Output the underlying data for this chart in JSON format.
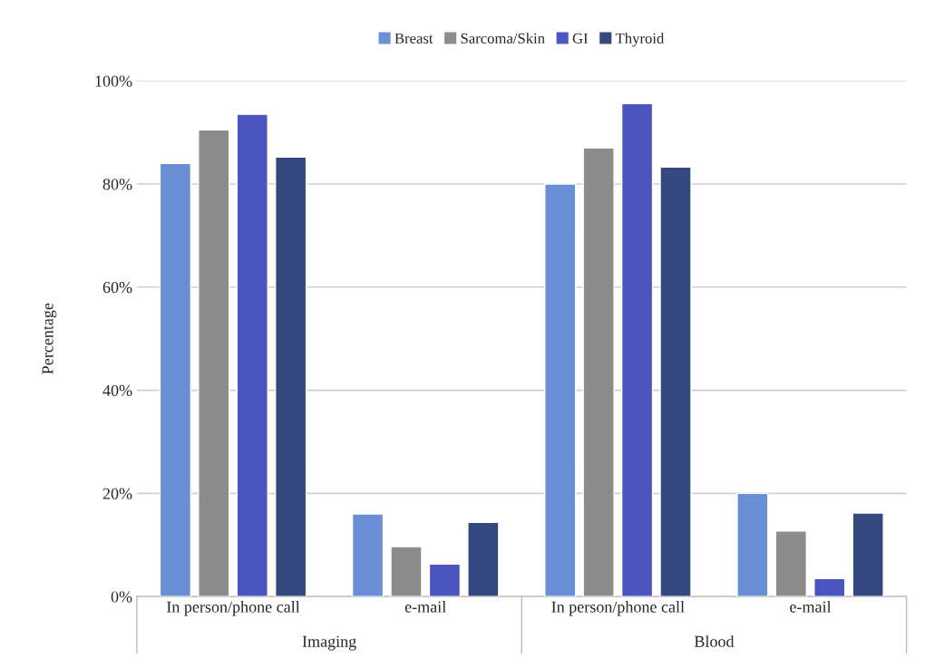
{
  "chart_data": {
    "type": "bar",
    "ylabel": "Percentage",
    "categories": [
      "In person/phone call",
      "e-mail",
      "In person/phone call",
      "e-mail"
    ],
    "annotations": [
      "Imaging",
      "Blood"
    ],
    "series": [
      {
        "name": "Breast",
        "color": "#6a8fd6",
        "values": [
          84,
          16,
          80,
          20
        ]
      },
      {
        "name": "Sarcoma/Skin",
        "color": "#8c8c8c",
        "values": [
          90.5,
          9.7,
          87,
          12.7
        ]
      },
      {
        "name": "GI",
        "color": "#4a55c0",
        "values": [
          93.5,
          6.3,
          95.6,
          3.5
        ]
      },
      {
        "name": "Thyroid",
        "color": "#34487f",
        "values": [
          85.2,
          14.4,
          83.3,
          16.2
        ]
      }
    ],
    "ylim": [
      0,
      100
    ],
    "yticks": [
      {
        "value": 0,
        "label": "0%"
      },
      {
        "value": 20,
        "label": "20%"
      },
      {
        "value": 40,
        "label": "40%"
      },
      {
        "value": 60,
        "label": "60%"
      },
      {
        "value": 80,
        "label": "80%"
      },
      {
        "value": 100,
        "label": "100%"
      }
    ],
    "grid": "y",
    "legend": "top"
  }
}
